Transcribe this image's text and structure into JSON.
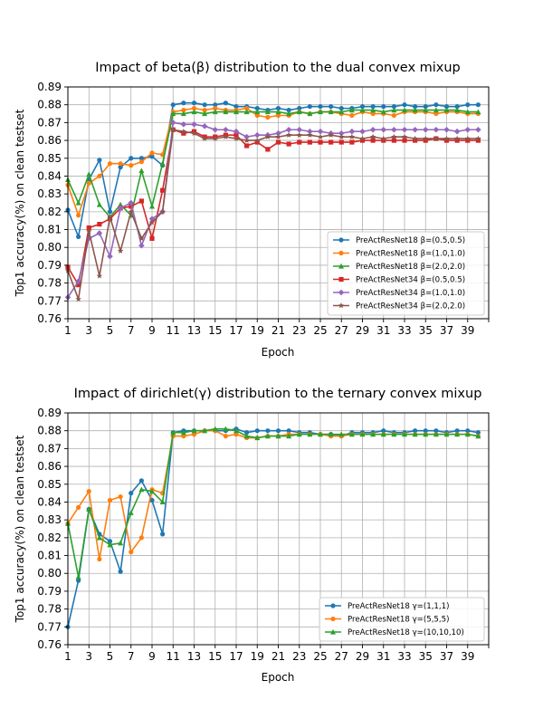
{
  "chart_data": [
    {
      "type": "line",
      "title": "Impact of beta(β) distribution to the dual convex mixup",
      "xlabel": "Epoch",
      "ylabel": "Top1 accuracy(%) on clean testset",
      "xlim": [
        1,
        41
      ],
      "ylim": [
        0.76,
        0.89
      ],
      "xticks": [
        1,
        3,
        5,
        7,
        9,
        11,
        13,
        15,
        17,
        19,
        21,
        23,
        25,
        27,
        29,
        31,
        33,
        35,
        37,
        39
      ],
      "yticks": [
        0.76,
        0.77,
        0.78,
        0.79,
        0.8,
        0.81,
        0.82,
        0.83,
        0.84,
        0.85,
        0.86,
        0.87,
        0.88,
        0.89
      ],
      "ytick_labels": [
        "0.76",
        "0.77",
        "0.78",
        "0.79",
        "0.80",
        "0.81",
        "0.82",
        "0.83",
        "0.84",
        "0.85",
        "0.86",
        "0.87",
        "0.88",
        "0.89"
      ],
      "grid": true,
      "legend_position": "lower-right",
      "x": [
        1,
        2,
        3,
        4,
        5,
        6,
        7,
        8,
        9,
        10,
        11,
        12,
        13,
        14,
        15,
        16,
        17,
        18,
        19,
        20,
        21,
        22,
        23,
        24,
        25,
        26,
        27,
        28,
        29,
        30,
        31,
        32,
        33,
        34,
        35,
        36,
        37,
        38,
        39,
        40
      ],
      "series": [
        {
          "name": "PreActResNet18 β=(0.5,0.5)",
          "color": "#1f77b4",
          "marker": "circle",
          "values": [
            0.821,
            0.806,
            0.838,
            0.849,
            0.82,
            0.845,
            0.85,
            0.85,
            0.851,
            0.846,
            0.88,
            0.881,
            0.881,
            0.88,
            0.88,
            0.881,
            0.879,
            0.879,
            0.878,
            0.877,
            0.878,
            0.877,
            0.878,
            0.879,
            0.879,
            0.879,
            0.878,
            0.878,
            0.879,
            0.879,
            0.879,
            0.879,
            0.88,
            0.879,
            0.879,
            0.88,
            0.879,
            0.879,
            0.88,
            0.88
          ]
        },
        {
          "name": "PreActResNet18 β=(1.0,1.0)",
          "color": "#ff7f0e",
          "marker": "circle",
          "values": [
            0.835,
            0.818,
            0.836,
            0.84,
            0.847,
            0.847,
            0.846,
            0.848,
            0.853,
            0.852,
            0.876,
            0.877,
            0.878,
            0.877,
            0.878,
            0.877,
            0.877,
            0.878,
            0.874,
            0.873,
            0.874,
            0.874,
            0.876,
            0.875,
            0.876,
            0.876,
            0.875,
            0.874,
            0.876,
            0.875,
            0.875,
            0.874,
            0.876,
            0.876,
            0.876,
            0.875,
            0.876,
            0.876,
            0.875,
            0.875
          ]
        },
        {
          "name": "PreActResNet18 β=(2.0,2.0)",
          "color": "#2ca02c",
          "marker": "triangle",
          "values": [
            0.838,
            0.825,
            0.841,
            0.824,
            0.817,
            0.824,
            0.818,
            0.843,
            0.823,
            0.847,
            0.875,
            0.875,
            0.876,
            0.875,
            0.876,
            0.876,
            0.876,
            0.876,
            0.876,
            0.876,
            0.876,
            0.875,
            0.876,
            0.875,
            0.876,
            0.876,
            0.876,
            0.877,
            0.877,
            0.877,
            0.876,
            0.877,
            0.877,
            0.877,
            0.877,
            0.877,
            0.877,
            0.877,
            0.876,
            0.876
          ]
        },
        {
          "name": "PreActResNet34 β=(0.5,0.5)",
          "color": "#d62728",
          "marker": "square",
          "values": [
            0.789,
            0.779,
            0.811,
            0.813,
            0.816,
            0.822,
            0.823,
            0.826,
            0.805,
            0.832,
            0.866,
            0.864,
            0.865,
            0.862,
            0.862,
            0.863,
            0.863,
            0.857,
            0.859,
            0.855,
            0.859,
            0.858,
            0.859,
            0.859,
            0.859,
            0.859,
            0.859,
            0.859,
            0.86,
            0.86,
            0.86,
            0.86,
            0.86,
            0.86,
            0.86,
            0.861,
            0.86,
            0.86,
            0.86,
            0.86
          ]
        },
        {
          "name": "PreActResNet34 β=(1.0,1.0)",
          "color": "#9467bd",
          "marker": "diamond",
          "values": [
            0.772,
            0.781,
            0.805,
            0.808,
            0.795,
            0.822,
            0.825,
            0.801,
            0.816,
            0.82,
            0.87,
            0.869,
            0.869,
            0.868,
            0.866,
            0.866,
            0.865,
            0.862,
            0.863,
            0.863,
            0.864,
            0.866,
            0.866,
            0.865,
            0.865,
            0.864,
            0.864,
            0.865,
            0.865,
            0.866,
            0.866,
            0.866,
            0.866,
            0.866,
            0.866,
            0.866,
            0.866,
            0.865,
            0.866,
            0.866
          ]
        },
        {
          "name": "PreActResNet34 β=(2.0,2.0)",
          "color": "#8c564b",
          "marker": "star",
          "values": [
            0.787,
            0.771,
            0.809,
            0.784,
            0.817,
            0.798,
            0.82,
            0.805,
            0.814,
            0.82,
            0.866,
            0.865,
            0.864,
            0.861,
            0.861,
            0.862,
            0.861,
            0.86,
            0.86,
            0.862,
            0.862,
            0.863,
            0.863,
            0.863,
            0.862,
            0.863,
            0.862,
            0.862,
            0.861,
            0.862,
            0.861,
            0.862,
            0.862,
            0.861,
            0.861,
            0.861,
            0.861,
            0.861,
            0.861,
            0.861
          ]
        }
      ]
    },
    {
      "type": "line",
      "title": "Impact of dirichlet(γ) distribution to the ternary convex mixup",
      "xlabel": "Epoch",
      "ylabel": "Top1 accuracy(%) on clean testset",
      "xlim": [
        1,
        41
      ],
      "ylim": [
        0.76,
        0.89
      ],
      "xticks": [
        1,
        3,
        5,
        7,
        9,
        11,
        13,
        15,
        17,
        19,
        21,
        23,
        25,
        27,
        29,
        31,
        33,
        35,
        37,
        39
      ],
      "yticks": [
        0.76,
        0.77,
        0.78,
        0.79,
        0.8,
        0.81,
        0.82,
        0.83,
        0.84,
        0.85,
        0.86,
        0.87,
        0.88,
        0.89
      ],
      "ytick_labels": [
        "0.76",
        "0.77",
        "0.78",
        "0.79",
        "0.80",
        "0.81",
        "0.82",
        "0.83",
        "0.84",
        "0.85",
        "0.86",
        "0.87",
        "0.88",
        "0.89"
      ],
      "grid": true,
      "legend_position": "lower-right",
      "x": [
        1,
        2,
        3,
        4,
        5,
        6,
        7,
        8,
        9,
        10,
        11,
        12,
        13,
        14,
        15,
        16,
        17,
        18,
        19,
        20,
        21,
        22,
        23,
        24,
        25,
        26,
        27,
        28,
        29,
        30,
        31,
        32,
        33,
        34,
        35,
        36,
        37,
        38,
        39,
        40
      ],
      "series": [
        {
          "name": "PreActResNet18 γ=(1,1,1)",
          "color": "#1f77b4",
          "marker": "circle",
          "values": [
            0.77,
            0.796,
            0.836,
            0.822,
            0.818,
            0.801,
            0.845,
            0.852,
            0.841,
            0.822,
            0.879,
            0.88,
            0.88,
            0.88,
            0.88,
            0.88,
            0.881,
            0.879,
            0.88,
            0.88,
            0.88,
            0.88,
            0.879,
            0.879,
            0.878,
            0.878,
            0.877,
            0.879,
            0.879,
            0.879,
            0.88,
            0.879,
            0.879,
            0.88,
            0.88,
            0.88,
            0.879,
            0.88,
            0.88,
            0.879
          ]
        },
        {
          "name": "PreActResNet18 γ=(5,5,5)",
          "color": "#ff7f0e",
          "marker": "circle",
          "values": [
            0.828,
            0.837,
            0.846,
            0.808,
            0.841,
            0.843,
            0.812,
            0.82,
            0.847,
            0.845,
            0.877,
            0.877,
            0.878,
            0.88,
            0.88,
            0.877,
            0.878,
            0.876,
            0.876,
            0.877,
            0.877,
            0.878,
            0.878,
            0.878,
            0.878,
            0.877,
            0.877,
            0.878,
            0.878,
            0.878,
            0.878,
            0.878,
            0.878,
            0.878,
            0.878,
            0.878,
            0.878,
            0.878,
            0.878,
            0.877
          ]
        },
        {
          "name": "PreActResNet18 γ=(10,10,10)",
          "color": "#2ca02c",
          "marker": "triangle",
          "values": [
            0.828,
            0.798,
            0.836,
            0.82,
            0.816,
            0.817,
            0.834,
            0.847,
            0.846,
            0.84,
            0.879,
            0.879,
            0.88,
            0.88,
            0.881,
            0.881,
            0.88,
            0.877,
            0.876,
            0.877,
            0.877,
            0.877,
            0.878,
            0.878,
            0.878,
            0.878,
            0.878,
            0.878,
            0.878,
            0.878,
            0.878,
            0.878,
            0.878,
            0.878,
            0.878,
            0.878,
            0.878,
            0.878,
            0.878,
            0.877
          ]
        }
      ]
    }
  ]
}
